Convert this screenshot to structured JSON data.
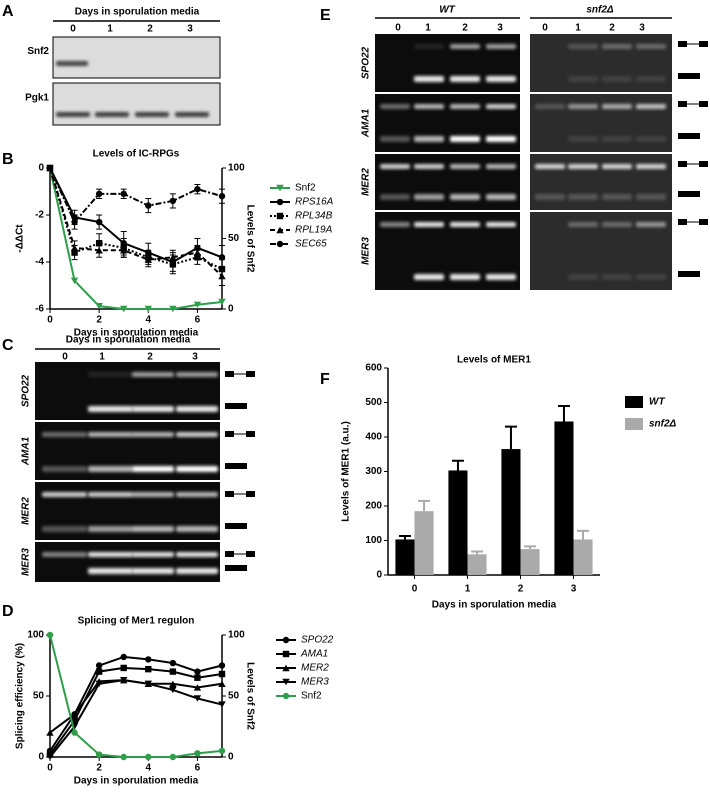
{
  "panel_labels": [
    "A",
    "B",
    "C",
    "D",
    "E",
    "F"
  ],
  "gel_a": {
    "header": "Days in sporulation media",
    "lanes": [
      "0",
      "1",
      "2",
      "3"
    ],
    "rows": [
      "Snf2",
      "Pgk1"
    ]
  },
  "gel_c": {
    "header": "Days in sporulation media",
    "lanes": [
      "0",
      "1",
      "2",
      "3"
    ],
    "rows": [
      "SPO22",
      "AMA1",
      "MER2",
      "MER3"
    ]
  },
  "gel_e": {
    "groups": [
      "WT",
      "snf2Δ"
    ],
    "lanes": [
      "0",
      "1",
      "2",
      "3"
    ],
    "rows": [
      "SPO22",
      "AMA1",
      "MER2",
      "MER3"
    ]
  },
  "chart_data": [
    {
      "type": "line",
      "title": "Levels of IC-RPGs",
      "xlabel": "Days in sporulation media",
      "ylabel": "-ΔΔCt",
      "y2label": "Levels of Snf2",
      "x": [
        0,
        1,
        2,
        3,
        4,
        5,
        6,
        7
      ],
      "xlim": [
        0,
        7
      ],
      "xticks": [
        0,
        2,
        4,
        6
      ],
      "ylim": [
        -6,
        0
      ],
      "yticks": [
        0,
        -2,
        -4,
        -6
      ],
      "y2lim": [
        0,
        100
      ],
      "y2ticks": [
        0,
        50,
        100
      ],
      "series": [
        {
          "name": "Snf2",
          "color": "#2e9e4a",
          "axis": "y2",
          "marker": "triangle-down",
          "dash": "solid",
          "values": [
            100,
            20,
            2,
            0,
            0,
            0,
            3,
            5
          ]
        },
        {
          "name": "RPS16A",
          "color": "#000000",
          "marker": "circle",
          "dash": "solid",
          "values": [
            0,
            -2.1,
            -2.3,
            -3.2,
            -3.6,
            -4.0,
            -3.4,
            -3.8
          ],
          "errors": [
            0,
            0.3,
            0.3,
            0.5,
            0.4,
            0.4,
            0.4,
            0.5
          ]
        },
        {
          "name": "RPL34B",
          "color": "#000000",
          "marker": "square",
          "dash": "dotted",
          "values": [
            0,
            -3.6,
            -3.2,
            -3.4,
            -3.8,
            -4.1,
            -3.8,
            -4.3
          ],
          "errors": [
            0,
            0.3,
            0.4,
            0.4,
            0.3,
            0.4,
            0.3,
            0.4
          ]
        },
        {
          "name": "RPL19A",
          "color": "#000000",
          "marker": "triangle",
          "dash": "dashed",
          "values": [
            0,
            -3.4,
            -3.5,
            -3.5,
            -3.9,
            -3.8,
            -3.6,
            -4.6
          ],
          "errors": [
            0,
            0.3,
            0.3,
            0.3,
            0.3,
            0.3,
            0.3,
            0.4
          ]
        },
        {
          "name": "SEC65",
          "color": "#000000",
          "marker": "circle",
          "dash": "dashdot",
          "values": [
            0,
            -2.3,
            -1.1,
            -1.1,
            -1.6,
            -1.4,
            -0.9,
            -1.2
          ],
          "errors": [
            0,
            0.3,
            0.2,
            0.2,
            0.3,
            0.3,
            0.2,
            0.3
          ]
        }
      ]
    },
    {
      "type": "line",
      "title": "Splicing of Mer1 regulon",
      "xlabel": "Days in sporulation media",
      "ylabel": "Splicing efficiency (%)",
      "y2label": "Levels of Snf2",
      "x": [
        0,
        1,
        2,
        3,
        4,
        5,
        6,
        7
      ],
      "xlim": [
        0,
        7
      ],
      "xticks": [
        0,
        2,
        4,
        6
      ],
      "ylim": [
        0,
        100
      ],
      "yticks": [
        0,
        50,
        100
      ],
      "y2lim": [
        0,
        100
      ],
      "y2ticks": [
        0,
        50,
        100
      ],
      "series": [
        {
          "name": "SPO22",
          "color": "#000000",
          "marker": "circle",
          "dash": "solid",
          "values": [
            5,
            35,
            75,
            82,
            80,
            77,
            70,
            75
          ]
        },
        {
          "name": "AMA1",
          "color": "#000000",
          "marker": "square",
          "dash": "solid",
          "values": [
            2,
            30,
            70,
            73,
            72,
            70,
            65,
            68
          ]
        },
        {
          "name": "MER2",
          "color": "#000000",
          "marker": "triangle",
          "dash": "solid",
          "values": [
            20,
            35,
            62,
            63,
            60,
            60,
            57,
            60
          ]
        },
        {
          "name": "MER3",
          "color": "#000000",
          "marker": "triangle-down",
          "dash": "solid",
          "values": [
            0,
            25,
            60,
            63,
            60,
            55,
            48,
            43
          ]
        },
        {
          "name": "Snf2",
          "color": "#2e9e4a",
          "axis": "y2",
          "marker": "circle",
          "dash": "solid",
          "values": [
            100,
            20,
            2,
            0,
            0,
            0,
            3,
            5
          ]
        }
      ]
    },
    {
      "type": "bar",
      "title": "Levels of MER1",
      "xlabel": "Days in sporulation media",
      "ylabel": "Levels of MER1 (a.u.)",
      "categories": [
        "0",
        "1",
        "2",
        "3"
      ],
      "ylim": [
        0,
        600
      ],
      "yticks": [
        0,
        100,
        200,
        300,
        400,
        500,
        600
      ],
      "series": [
        {
          "name": "WT",
          "color": "#000000",
          "values": [
            103,
            303,
            365,
            445
          ],
          "errors": [
            10,
            28,
            65,
            45
          ]
        },
        {
          "name": "snf2Δ",
          "color": "#aaaaaa",
          "values": [
            185,
            60,
            75,
            103
          ],
          "errors": [
            30,
            8,
            8,
            25
          ]
        }
      ]
    }
  ]
}
